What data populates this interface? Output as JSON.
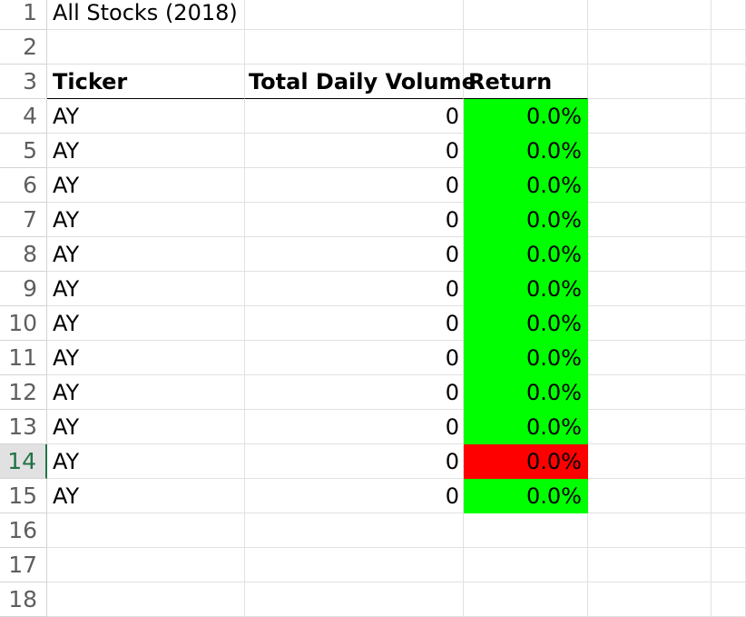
{
  "sheet": {
    "title": "All Stocks (2018)",
    "headers": {
      "ticker": "Ticker",
      "volume": "Total Daily Volume",
      "return": "Return"
    },
    "row_numbers": [
      "1",
      "2",
      "3",
      "4",
      "5",
      "6",
      "7",
      "8",
      "9",
      "10",
      "11",
      "12",
      "13",
      "14",
      "15",
      "16",
      "17",
      "18"
    ],
    "selected_row": "14",
    "rows": [
      {
        "ticker": "AY",
        "volume": "0",
        "return": "0.0%",
        "status": "positive"
      },
      {
        "ticker": "AY",
        "volume": "0",
        "return": "0.0%",
        "status": "positive"
      },
      {
        "ticker": "AY",
        "volume": "0",
        "return": "0.0%",
        "status": "positive"
      },
      {
        "ticker": "AY",
        "volume": "0",
        "return": "0.0%",
        "status": "positive"
      },
      {
        "ticker": "AY",
        "volume": "0",
        "return": "0.0%",
        "status": "positive"
      },
      {
        "ticker": "AY",
        "volume": "0",
        "return": "0.0%",
        "status": "positive"
      },
      {
        "ticker": "AY",
        "volume": "0",
        "return": "0.0%",
        "status": "positive"
      },
      {
        "ticker": "AY",
        "volume": "0",
        "return": "0.0%",
        "status": "positive"
      },
      {
        "ticker": "AY",
        "volume": "0",
        "return": "0.0%",
        "status": "positive"
      },
      {
        "ticker": "AY",
        "volume": "0",
        "return": "0.0%",
        "status": "positive"
      },
      {
        "ticker": "AY",
        "volume": "0",
        "return": "0.0%",
        "status": "negative"
      },
      {
        "ticker": "AY",
        "volume": "0",
        "return": "0.0%",
        "status": "positive"
      }
    ]
  },
  "colors": {
    "positive": "#00ff00",
    "negative": "#ff0000",
    "selected_header": "#217346"
  }
}
